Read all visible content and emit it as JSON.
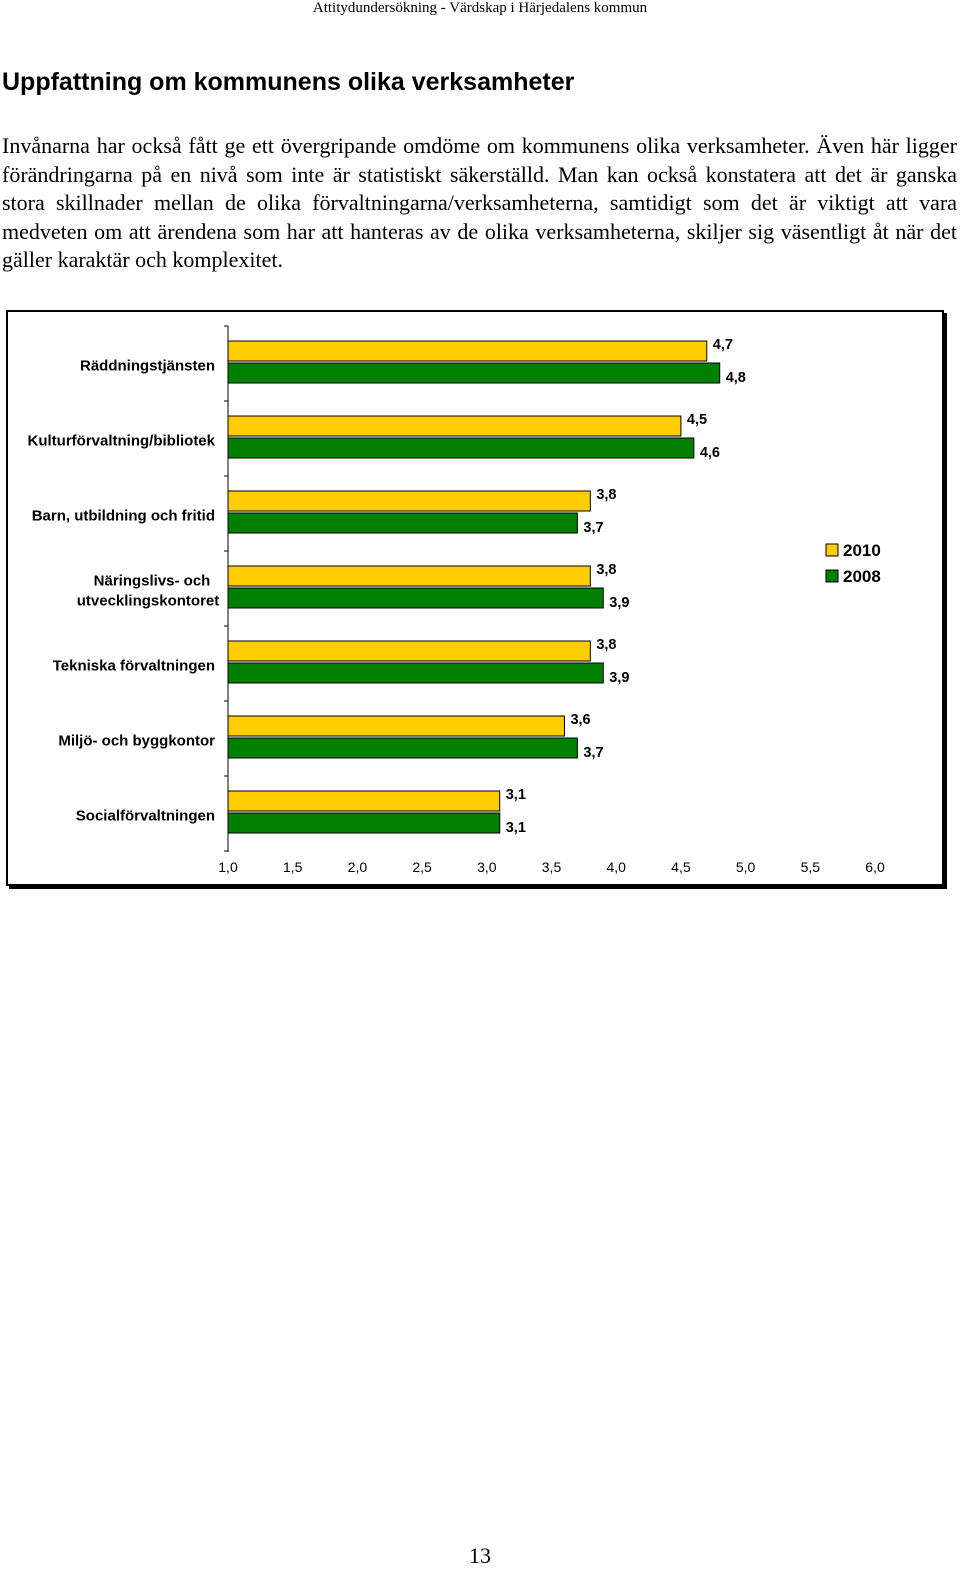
{
  "header": {
    "running_title": "Attitydundersökning - Värdskap i Härjedalens kommun"
  },
  "section": {
    "heading": "Uppfattning om kommunens olika verksamheter"
  },
  "body": {
    "paragraph": "Invånarna har också fått ge ett övergripande omdöme om kommunens olika verksamheter. Även här ligger förändringarna på en nivå som inte är statistiskt säkerställd. Man kan också konstatera att det är ganska stora skillnader mellan de olika förvaltningarna/verksamheterna, samtidigt som det är viktigt att vara medveten om att ärendena som har att hanteras av de olika verksamheterna, skiljer sig väsentligt åt när det gäller karaktär och komplexitet."
  },
  "chart_data": {
    "type": "bar",
    "orientation": "horizontal",
    "categories": [
      "Räddningstjänsten",
      "Kulturförvaltning/bibliotek",
      "Barn, utbildning och fritid",
      "Näringslivs- och utvecklingskontoret",
      "Tekniska förvaltningen",
      "Miljö- och byggkontor",
      "Socialförvaltningen"
    ],
    "series": [
      {
        "name": "2010",
        "color": "#FFCC00",
        "values": [
          4.7,
          4.5,
          3.8,
          3.8,
          3.8,
          3.6,
          3.1
        ]
      },
      {
        "name": "2008",
        "color": "#008000",
        "values": [
          4.8,
          4.6,
          3.7,
          3.9,
          3.9,
          3.7,
          3.1
        ]
      }
    ],
    "value_labels": [
      [
        "4,7",
        "4,5",
        "3,8",
        "3,8",
        "3,8",
        "3,6",
        "3,1"
      ],
      [
        "4,8",
        "4,6",
        "3,7",
        "3,9",
        "3,9",
        "3,7",
        "3,1"
      ]
    ],
    "xlim": [
      1.0,
      6.0
    ],
    "xticks": [
      "1,0",
      "1,5",
      "2,0",
      "2,5",
      "3,0",
      "3,5",
      "4,0",
      "4,5",
      "5,0",
      "5,5",
      "6,0"
    ],
    "legend_position": "right",
    "grid": false
  },
  "footer": {
    "page_number": "13"
  }
}
